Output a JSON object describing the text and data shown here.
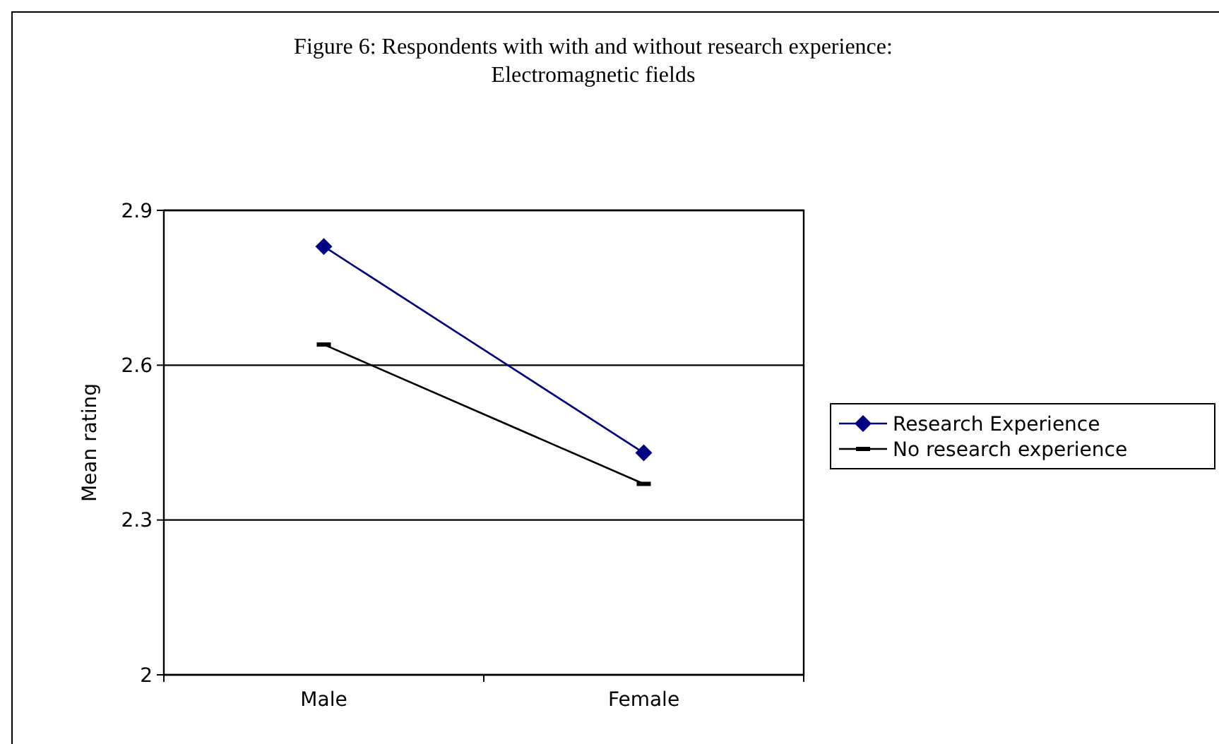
{
  "chart_data": {
    "type": "line",
    "title": "Figure 6: Respondents with with and without research experience:\nElectromagnetic fields",
    "ylabel": "Mean rating",
    "categories": [
      "Male",
      "Female"
    ],
    "series": [
      {
        "name": "Research Experience",
        "color": "#000080",
        "values": [
          2.83,
          2.43
        ],
        "marker": "diamond"
      },
      {
        "name": "No research experience",
        "color": "#000000",
        "values": [
          2.64,
          2.37
        ],
        "marker": "square"
      }
    ],
    "ylim": [
      2,
      2.9
    ],
    "yticks": [
      2,
      2.3,
      2.6,
      2.9
    ],
    "grid": "y",
    "legend": "right"
  }
}
